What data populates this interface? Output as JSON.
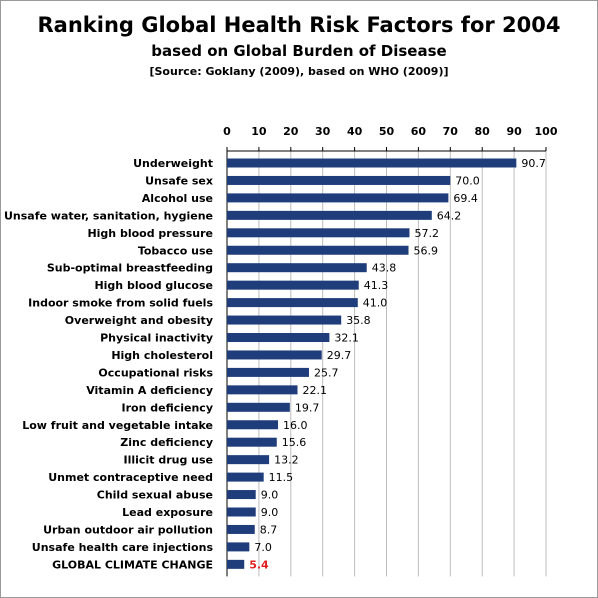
{
  "title": "Ranking Global Health Risk Factors for 2004",
  "subtitle": "based on Global Burden of Disease",
  "source": "[Source: Goklany (2009), based on WHO (2009)]",
  "colors": {
    "bar": "#1f3d7a",
    "highlight_label": "#e02020",
    "grid": "#bdbdbd"
  },
  "chart_data": {
    "type": "bar",
    "orientation": "horizontal",
    "title": "Ranking Global Health Risk Factors for 2004",
    "subtitle": "based on Global Burden of Disease",
    "xlim": [
      0,
      100
    ],
    "xticks": [
      "0",
      "10",
      "20",
      "30",
      "40",
      "50",
      "60",
      "70",
      "80",
      "90",
      "100"
    ],
    "xtick_values": [
      0,
      10,
      20,
      30,
      40,
      50,
      60,
      70,
      80,
      90,
      100
    ],
    "x_axis_position": "top",
    "grid": true,
    "categories": [
      "Underweight",
      "Unsafe sex",
      "Alcohol use",
      "Unsafe water, sanitation, hygiene",
      "High blood pressure",
      "Tobacco use",
      "Sub-optimal breastfeeding",
      "High blood glucose",
      "Indoor smoke from solid fuels",
      "Overweight and obesity",
      "Physical inactivity",
      "High cholesterol",
      "Occupational risks",
      "Vitamin A deficiency",
      "Iron deficiency",
      "Low fruit and vegetable intake",
      "Zinc deficiency",
      "Illicit drug use",
      "Unmet contraceptive need",
      "Child sexual abuse",
      "Lead exposure",
      "Urban outdoor air pollution",
      "Unsafe health care injections",
      "GLOBAL CLIMATE CHANGE"
    ],
    "values": [
      90.7,
      70.0,
      69.4,
      64.2,
      57.2,
      56.9,
      43.8,
      41.3,
      41.0,
      35.8,
      32.1,
      29.7,
      25.7,
      22.1,
      19.7,
      16.0,
      15.6,
      13.2,
      11.5,
      9.0,
      9.0,
      8.7,
      7.0,
      5.4
    ],
    "data_labels": [
      "90.7",
      "70.0",
      "69.4",
      "64.2",
      "57.2",
      "56.9",
      "43.8",
      "41.3",
      "41.0",
      "35.8",
      "32.1",
      "29.7",
      "25.7",
      "22.1",
      "19.7",
      "16.0",
      "15.6",
      "13.2",
      "11.5",
      "9.0",
      "9.0",
      "8.7",
      "7.0",
      "5.4"
    ],
    "highlight_index": 23
  }
}
